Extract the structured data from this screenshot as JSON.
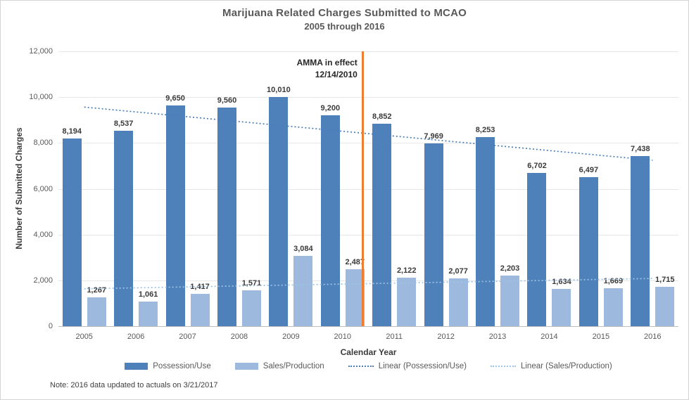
{
  "note": "Note: 2016 data updated to actuals on 3/21/2017",
  "chart_data": {
    "type": "bar",
    "title": "Marijuana Related Charges Submitted to MCAO",
    "subtitle": "2005 through 2016",
    "xlabel": "Calendar Year",
    "ylabel": "Number of Submitted Charges",
    "ylim": [
      0,
      12000
    ],
    "ytick_step": 2000,
    "grid": true,
    "legend_position": "bottom",
    "categories": [
      "2005",
      "2006",
      "2007",
      "2008",
      "2009",
      "2010",
      "2011",
      "2012",
      "2013",
      "2014",
      "2015",
      "2016"
    ],
    "series": [
      {
        "name": "Possession/Use",
        "color": "#4e81b9",
        "values": [
          8194,
          8537,
          9650,
          9560,
          10010,
          9200,
          8852,
          7969,
          8253,
          6702,
          6497,
          7438
        ]
      },
      {
        "name": "Sales/Production",
        "color": "#9dbade",
        "values": [
          1267,
          1061,
          1417,
          1571,
          3084,
          2487,
          2122,
          2077,
          2203,
          1634,
          1669,
          1715
        ]
      }
    ],
    "trendlines": [
      {
        "label": "Linear (Possession/Use)",
        "series_index": 0,
        "color": "#4a7ebb"
      },
      {
        "label": "Linear (Sales/Production)",
        "series_index": 1,
        "color": "#9dc3e6"
      }
    ],
    "event_line": {
      "label_line1": "AMMA in effect",
      "label_line2": "12/14/2010",
      "color": "#ED7D31",
      "x_fraction": 0.489
    }
  }
}
